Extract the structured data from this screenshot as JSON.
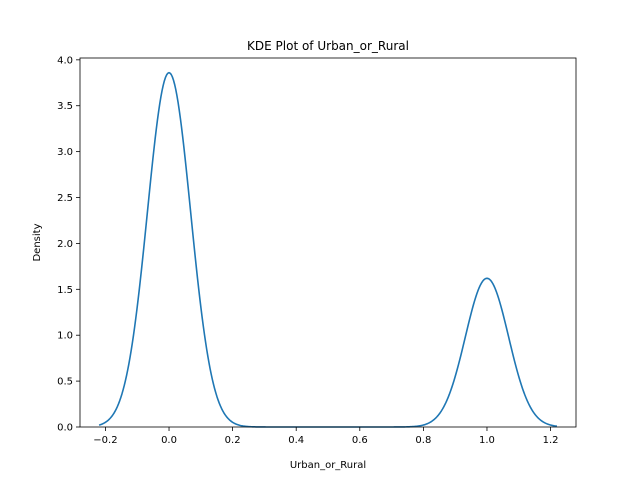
{
  "chart_data": {
    "type": "line",
    "title": "KDE Plot of Urban_or_Rural",
    "xlabel": "Urban_or_Rural",
    "ylabel": "Density",
    "xlim": [
      -0.28,
      1.28
    ],
    "ylim": [
      0,
      4.02
    ],
    "xticks": [
      -0.2,
      0.0,
      0.2,
      0.4,
      0.6,
      0.8,
      1.0,
      1.2
    ],
    "xtick_labels": [
      "−0.2",
      "0.0",
      "0.2",
      "0.4",
      "0.6",
      "0.8",
      "1.0",
      "1.2"
    ],
    "yticks": [
      0.0,
      0.5,
      1.0,
      1.5,
      2.0,
      2.5,
      3.0,
      3.5,
      4.0
    ],
    "ytick_labels": [
      "0.0",
      "0.5",
      "1.0",
      "1.5",
      "2.0",
      "2.5",
      "3.0",
      "3.5",
      "4.0"
    ],
    "grid": false,
    "series": [
      {
        "color": "#1f77b4",
        "kde": {
          "x_range": [
            -0.22,
            1.22
          ],
          "components": [
            {
              "center": 0.0,
              "peak": 3.86,
              "sigma": 0.068
            },
            {
              "center": 1.0,
              "peak": 1.62,
              "sigma": 0.068
            }
          ]
        }
      }
    ]
  }
}
